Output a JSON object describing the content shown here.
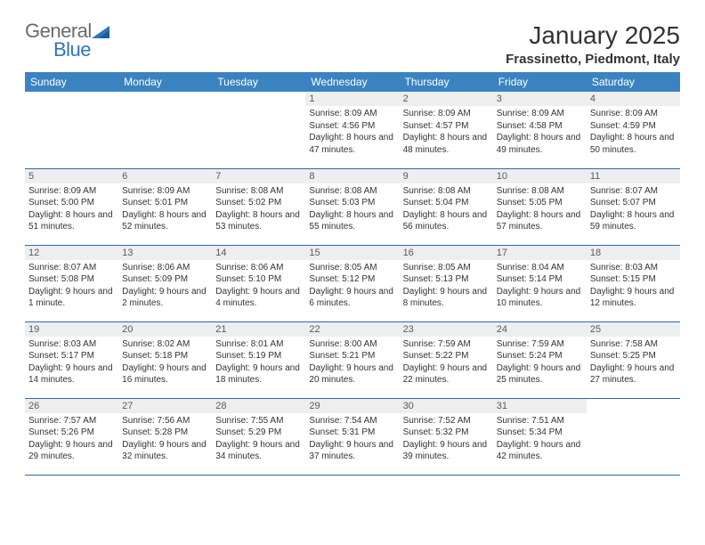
{
  "brand": {
    "part1": "General",
    "part2": "Blue"
  },
  "title": "January 2025",
  "location": "Frassinetto, Piedmont, Italy",
  "colors": {
    "header_bg": "#3b83c0",
    "header_text": "#ffffff",
    "daynum_bg": "#eceef0",
    "daynum_text": "#5a5a5a",
    "body_text": "#333333",
    "rule": "#2f6aa3",
    "logo_gray": "#6a6a6a",
    "logo_blue": "#2f76b8"
  },
  "day_headers": [
    "Sunday",
    "Monday",
    "Tuesday",
    "Wednesday",
    "Thursday",
    "Friday",
    "Saturday"
  ],
  "weeks": [
    [
      {
        "n": "",
        "sr": "",
        "ss": "",
        "dl": ""
      },
      {
        "n": "",
        "sr": "",
        "ss": "",
        "dl": ""
      },
      {
        "n": "",
        "sr": "",
        "ss": "",
        "dl": ""
      },
      {
        "n": "1",
        "sr": "Sunrise: 8:09 AM",
        "ss": "Sunset: 4:56 PM",
        "dl": "Daylight: 8 hours and 47 minutes."
      },
      {
        "n": "2",
        "sr": "Sunrise: 8:09 AM",
        "ss": "Sunset: 4:57 PM",
        "dl": "Daylight: 8 hours and 48 minutes."
      },
      {
        "n": "3",
        "sr": "Sunrise: 8:09 AM",
        "ss": "Sunset: 4:58 PM",
        "dl": "Daylight: 8 hours and 49 minutes."
      },
      {
        "n": "4",
        "sr": "Sunrise: 8:09 AM",
        "ss": "Sunset: 4:59 PM",
        "dl": "Daylight: 8 hours and 50 minutes."
      }
    ],
    [
      {
        "n": "5",
        "sr": "Sunrise: 8:09 AM",
        "ss": "Sunset: 5:00 PM",
        "dl": "Daylight: 8 hours and 51 minutes."
      },
      {
        "n": "6",
        "sr": "Sunrise: 8:09 AM",
        "ss": "Sunset: 5:01 PM",
        "dl": "Daylight: 8 hours and 52 minutes."
      },
      {
        "n": "7",
        "sr": "Sunrise: 8:08 AM",
        "ss": "Sunset: 5:02 PM",
        "dl": "Daylight: 8 hours and 53 minutes."
      },
      {
        "n": "8",
        "sr": "Sunrise: 8:08 AM",
        "ss": "Sunset: 5:03 PM",
        "dl": "Daylight: 8 hours and 55 minutes."
      },
      {
        "n": "9",
        "sr": "Sunrise: 8:08 AM",
        "ss": "Sunset: 5:04 PM",
        "dl": "Daylight: 8 hours and 56 minutes."
      },
      {
        "n": "10",
        "sr": "Sunrise: 8:08 AM",
        "ss": "Sunset: 5:05 PM",
        "dl": "Daylight: 8 hours and 57 minutes."
      },
      {
        "n": "11",
        "sr": "Sunrise: 8:07 AM",
        "ss": "Sunset: 5:07 PM",
        "dl": "Daylight: 8 hours and 59 minutes."
      }
    ],
    [
      {
        "n": "12",
        "sr": "Sunrise: 8:07 AM",
        "ss": "Sunset: 5:08 PM",
        "dl": "Daylight: 9 hours and 1 minute."
      },
      {
        "n": "13",
        "sr": "Sunrise: 8:06 AM",
        "ss": "Sunset: 5:09 PM",
        "dl": "Daylight: 9 hours and 2 minutes."
      },
      {
        "n": "14",
        "sr": "Sunrise: 8:06 AM",
        "ss": "Sunset: 5:10 PM",
        "dl": "Daylight: 9 hours and 4 minutes."
      },
      {
        "n": "15",
        "sr": "Sunrise: 8:05 AM",
        "ss": "Sunset: 5:12 PM",
        "dl": "Daylight: 9 hours and 6 minutes."
      },
      {
        "n": "16",
        "sr": "Sunrise: 8:05 AM",
        "ss": "Sunset: 5:13 PM",
        "dl": "Daylight: 9 hours and 8 minutes."
      },
      {
        "n": "17",
        "sr": "Sunrise: 8:04 AM",
        "ss": "Sunset: 5:14 PM",
        "dl": "Daylight: 9 hours and 10 minutes."
      },
      {
        "n": "18",
        "sr": "Sunrise: 8:03 AM",
        "ss": "Sunset: 5:15 PM",
        "dl": "Daylight: 9 hours and 12 minutes."
      }
    ],
    [
      {
        "n": "19",
        "sr": "Sunrise: 8:03 AM",
        "ss": "Sunset: 5:17 PM",
        "dl": "Daylight: 9 hours and 14 minutes."
      },
      {
        "n": "20",
        "sr": "Sunrise: 8:02 AM",
        "ss": "Sunset: 5:18 PM",
        "dl": "Daylight: 9 hours and 16 minutes."
      },
      {
        "n": "21",
        "sr": "Sunrise: 8:01 AM",
        "ss": "Sunset: 5:19 PM",
        "dl": "Daylight: 9 hours and 18 minutes."
      },
      {
        "n": "22",
        "sr": "Sunrise: 8:00 AM",
        "ss": "Sunset: 5:21 PM",
        "dl": "Daylight: 9 hours and 20 minutes."
      },
      {
        "n": "23",
        "sr": "Sunrise: 7:59 AM",
        "ss": "Sunset: 5:22 PM",
        "dl": "Daylight: 9 hours and 22 minutes."
      },
      {
        "n": "24",
        "sr": "Sunrise: 7:59 AM",
        "ss": "Sunset: 5:24 PM",
        "dl": "Daylight: 9 hours and 25 minutes."
      },
      {
        "n": "25",
        "sr": "Sunrise: 7:58 AM",
        "ss": "Sunset: 5:25 PM",
        "dl": "Daylight: 9 hours and 27 minutes."
      }
    ],
    [
      {
        "n": "26",
        "sr": "Sunrise: 7:57 AM",
        "ss": "Sunset: 5:26 PM",
        "dl": "Daylight: 9 hours and 29 minutes."
      },
      {
        "n": "27",
        "sr": "Sunrise: 7:56 AM",
        "ss": "Sunset: 5:28 PM",
        "dl": "Daylight: 9 hours and 32 minutes."
      },
      {
        "n": "28",
        "sr": "Sunrise: 7:55 AM",
        "ss": "Sunset: 5:29 PM",
        "dl": "Daylight: 9 hours and 34 minutes."
      },
      {
        "n": "29",
        "sr": "Sunrise: 7:54 AM",
        "ss": "Sunset: 5:31 PM",
        "dl": "Daylight: 9 hours and 37 minutes."
      },
      {
        "n": "30",
        "sr": "Sunrise: 7:52 AM",
        "ss": "Sunset: 5:32 PM",
        "dl": "Daylight: 9 hours and 39 minutes."
      },
      {
        "n": "31",
        "sr": "Sunrise: 7:51 AM",
        "ss": "Sunset: 5:34 PM",
        "dl": "Daylight: 9 hours and 42 minutes."
      },
      {
        "n": "",
        "sr": "",
        "ss": "",
        "dl": ""
      }
    ]
  ]
}
